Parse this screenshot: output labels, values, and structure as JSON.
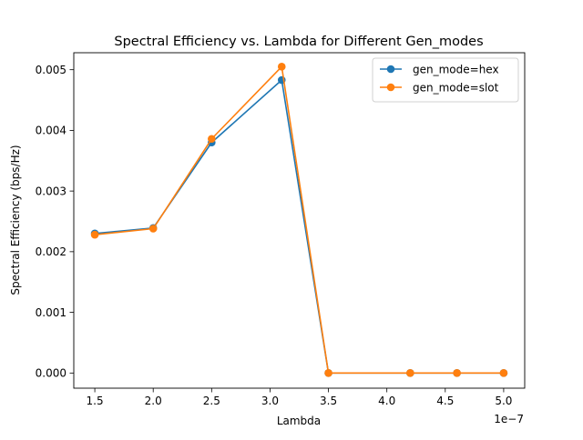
{
  "chart_data": {
    "type": "line",
    "title": "Spectral Efficiency vs. Lambda for Different Gen_modes",
    "xlabel": "Lambda",
    "ylabel": "Spectral Efficiency (bps/Hz)",
    "x_offset_label": "1e−7",
    "x": [
      1.5e-07,
      2e-07,
      2.5e-07,
      3.1e-07,
      3.5e-07,
      4.2e-07,
      4.6e-07,
      5e-07
    ],
    "xlim": [
      1.32e-07,
      5.18e-07
    ],
    "ylim": [
      -0.00025,
      0.00528
    ],
    "x_ticks": [
      1.5e-07,
      2e-07,
      2.5e-07,
      3e-07,
      3.5e-07,
      4e-07,
      4.5e-07,
      5e-07
    ],
    "x_tick_labels": [
      "1.5",
      "2.0",
      "2.5",
      "3.0",
      "3.5",
      "4.0",
      "4.5",
      "5.0"
    ],
    "y_ticks": [
      0,
      0.001,
      0.002,
      0.003,
      0.004,
      0.005
    ],
    "y_tick_labels": [
      "0.000",
      "0.001",
      "0.002",
      "0.003",
      "0.004",
      "0.005"
    ],
    "grid": false,
    "legend_position": "top-right",
    "series": [
      {
        "name": "gen_mode=hex",
        "color": "#1f77b4",
        "values": [
          0.0023,
          0.00239,
          0.0038,
          0.00483,
          0.0,
          0.0,
          0.0,
          0.0
        ]
      },
      {
        "name": "gen_mode=slot",
        "color": "#ff7f0e",
        "values": [
          0.00228,
          0.00238,
          0.00386,
          0.00505,
          0.0,
          0.0,
          0.0,
          0.0
        ]
      }
    ]
  }
}
